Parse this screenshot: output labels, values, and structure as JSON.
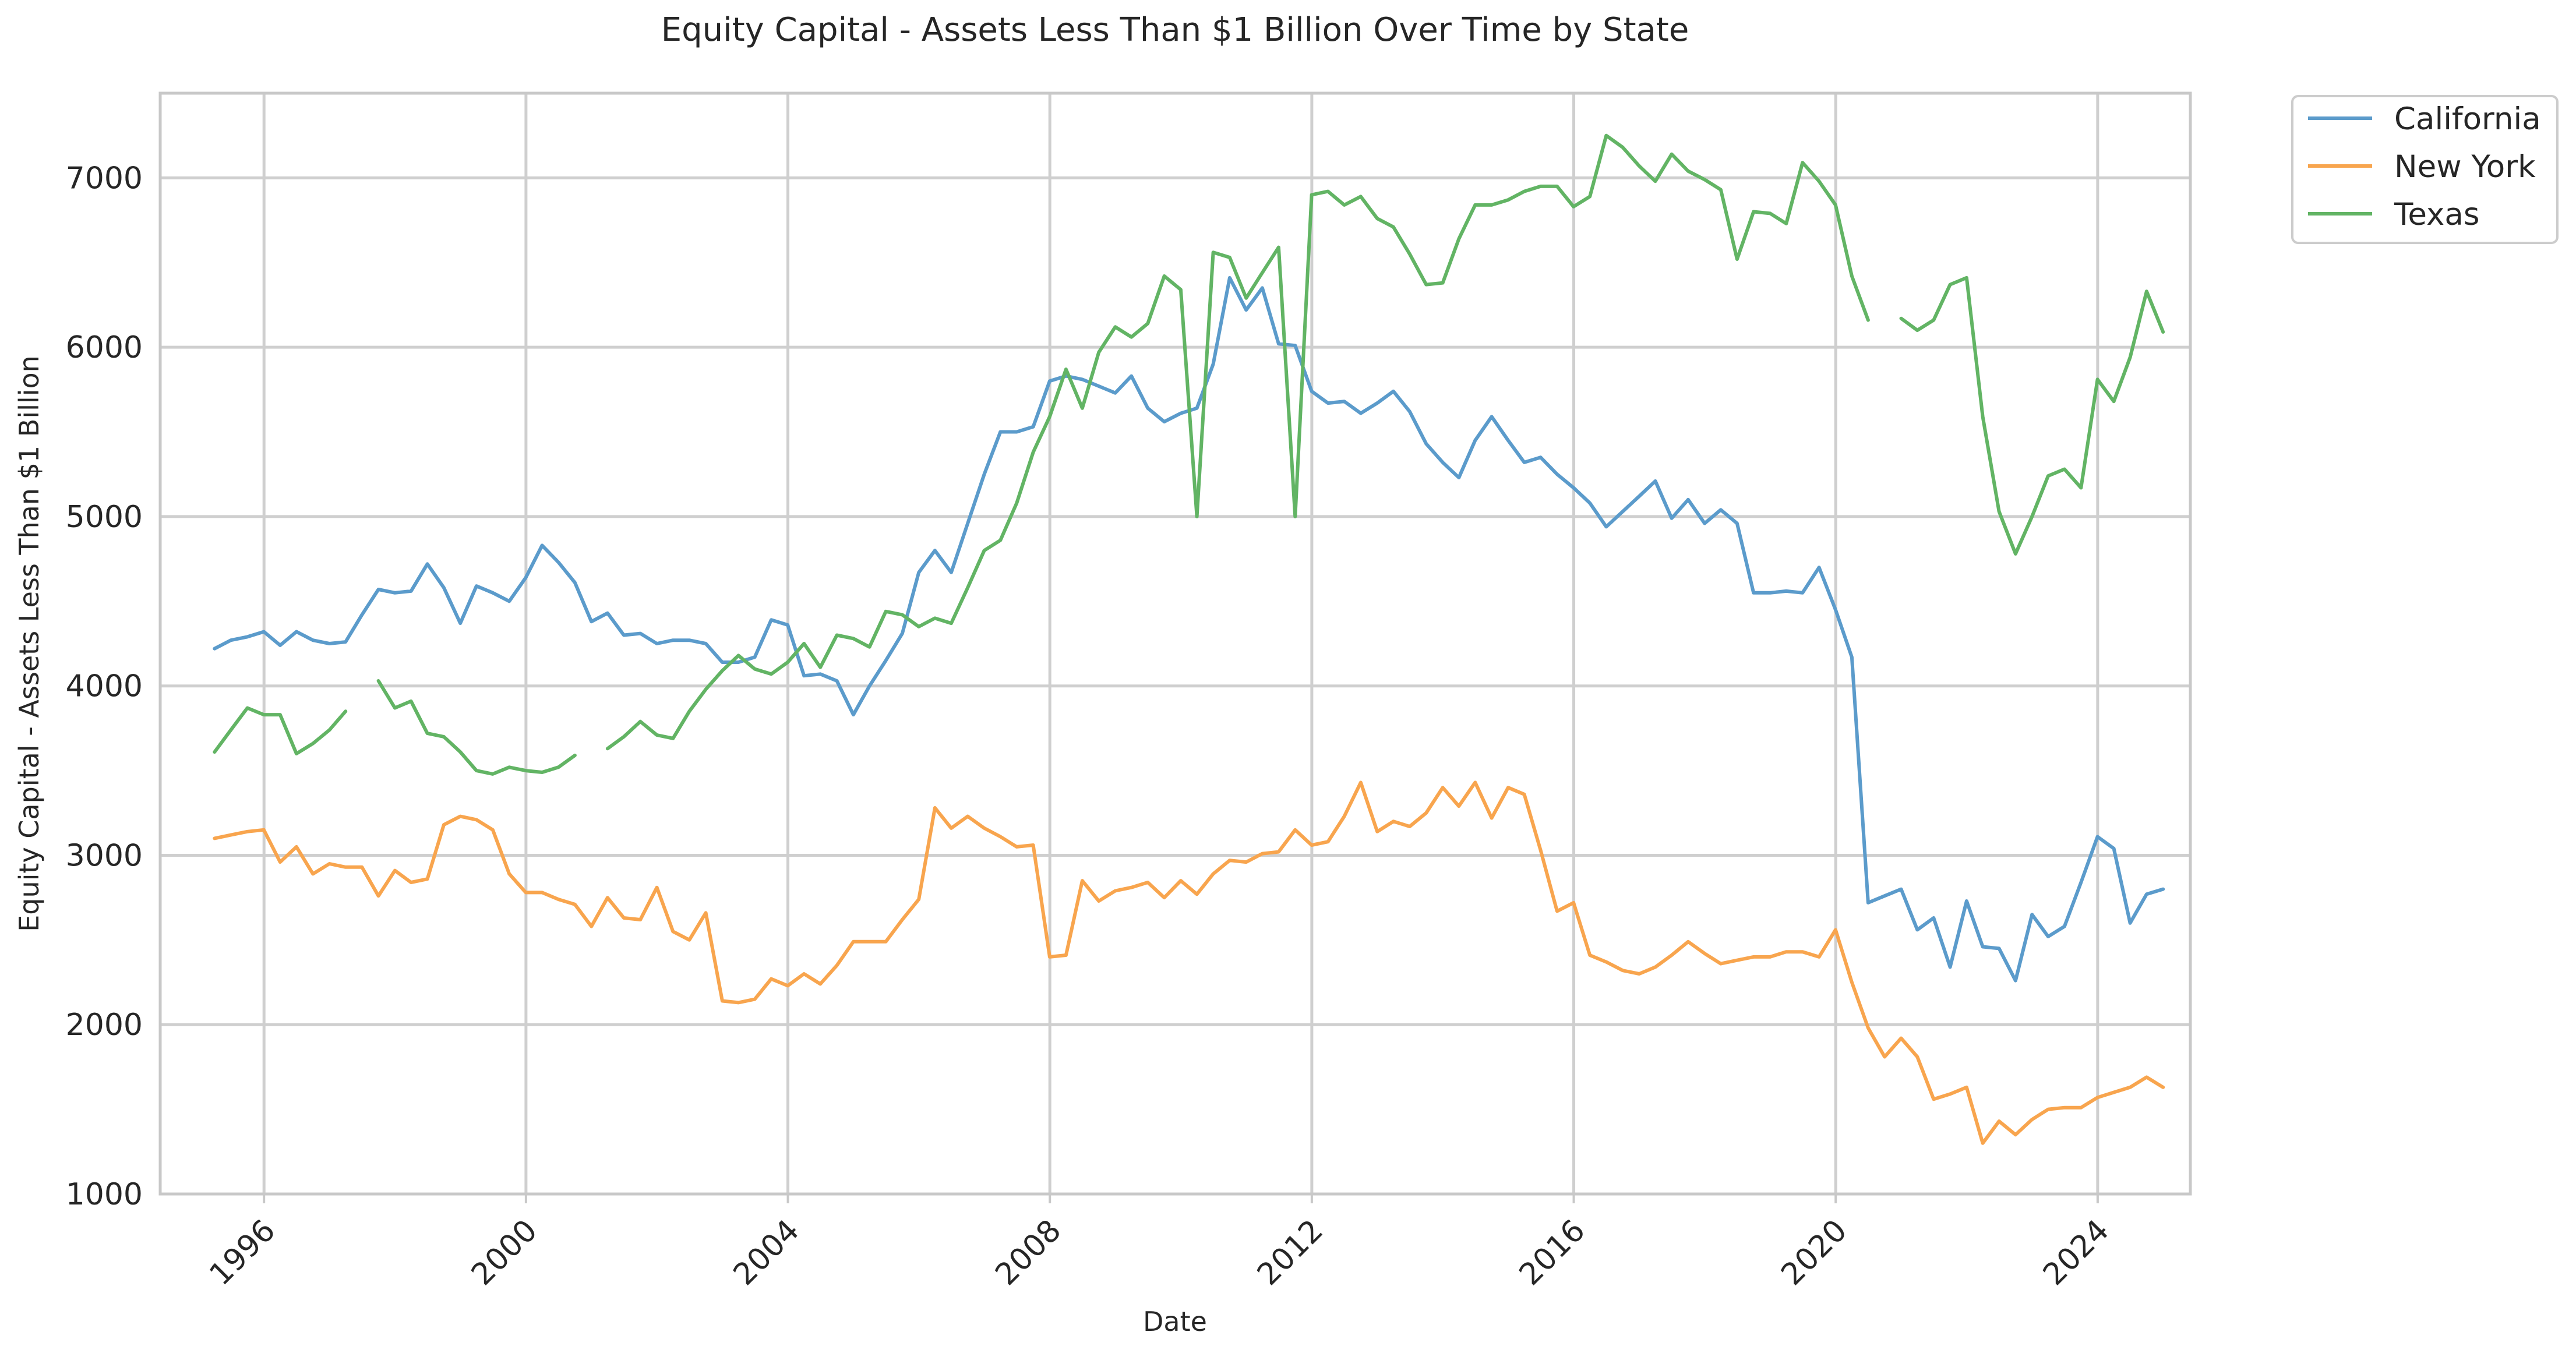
{
  "chart_data": {
    "type": "line",
    "title": "Equity Capital - Assets Less Than $1 Billion Over Time by State",
    "xlabel": "Date",
    "ylabel": "Equity Capital - Assets Less Than $1 Billion",
    "xlim": [
      "1994-06-01",
      "2025-06-01"
    ],
    "ylim": [
      1000,
      7500
    ],
    "x_ticks": [
      {
        "date": "1996-01-01",
        "label": "1996"
      },
      {
        "date": "2000-01-01",
        "label": "2000"
      },
      {
        "date": "2004-01-01",
        "label": "2004"
      },
      {
        "date": "2008-01-01",
        "label": "2008"
      },
      {
        "date": "2012-01-01",
        "label": "2012"
      },
      {
        "date": "2016-01-01",
        "label": "2016"
      },
      {
        "date": "2020-01-01",
        "label": "2020"
      },
      {
        "date": "2024-01-01",
        "label": "2024"
      }
    ],
    "y_ticks": [
      1000,
      2000,
      3000,
      4000,
      5000,
      6000,
      7000
    ],
    "grid": true,
    "legend_position": "outside-top-right",
    "x": [
      "1995-03-31",
      "1995-06-30",
      "1995-09-30",
      "1995-12-31",
      "1996-03-31",
      "1996-06-30",
      "1996-09-30",
      "1996-12-31",
      "1997-03-31",
      "1997-06-30",
      "1997-09-30",
      "1997-12-31",
      "1998-03-31",
      "1998-06-30",
      "1998-09-30",
      "1998-12-31",
      "1999-03-31",
      "1999-06-30",
      "1999-09-30",
      "1999-12-31",
      "2000-03-31",
      "2000-06-30",
      "2000-09-30",
      "2000-12-31",
      "2001-03-31",
      "2001-06-30",
      "2001-09-30",
      "2001-12-31",
      "2002-03-31",
      "2002-06-30",
      "2002-09-30",
      "2002-12-31",
      "2003-03-31",
      "2003-06-30",
      "2003-09-30",
      "2003-12-31",
      "2004-03-31",
      "2004-06-30",
      "2004-09-30",
      "2004-12-31",
      "2005-03-31",
      "2005-06-30",
      "2005-09-30",
      "2005-12-31",
      "2006-03-31",
      "2006-06-30",
      "2006-09-30",
      "2006-12-31",
      "2007-03-31",
      "2007-06-30",
      "2007-09-30",
      "2007-12-31",
      "2008-03-31",
      "2008-06-30",
      "2008-09-30",
      "2008-12-31",
      "2009-03-31",
      "2009-06-30",
      "2009-09-30",
      "2009-12-31",
      "2010-03-31",
      "2010-06-30",
      "2010-09-30",
      "2010-12-31",
      "2011-03-31",
      "2011-06-30",
      "2011-09-30",
      "2011-12-31",
      "2012-03-31",
      "2012-06-30",
      "2012-09-30",
      "2012-12-31",
      "2013-03-31",
      "2013-06-30",
      "2013-09-30",
      "2013-12-31",
      "2014-03-31",
      "2014-06-30",
      "2014-09-30",
      "2014-12-31",
      "2015-03-31",
      "2015-06-30",
      "2015-09-30",
      "2015-12-31",
      "2016-03-31",
      "2016-06-30",
      "2016-09-30",
      "2016-12-31",
      "2017-03-31",
      "2017-06-30",
      "2017-09-30",
      "2017-12-31",
      "2018-03-31",
      "2018-06-30",
      "2018-09-30",
      "2018-12-31",
      "2019-03-31",
      "2019-06-30",
      "2019-09-30",
      "2019-12-31",
      "2020-03-31",
      "2020-06-30",
      "2020-09-30",
      "2020-12-31",
      "2021-03-31",
      "2021-06-30",
      "2021-09-30",
      "2021-12-31",
      "2022-03-31",
      "2022-06-30",
      "2022-09-30",
      "2022-12-31",
      "2023-03-31",
      "2023-06-30",
      "2023-09-30",
      "2023-12-31",
      "2024-03-31",
      "2024-06-30",
      "2024-09-30",
      "2024-12-31"
    ],
    "series": [
      {
        "name": "California",
        "color": "#5b9bcb",
        "values": [
          4220,
          4270,
          4290,
          4320,
          4240,
          4320,
          4270,
          4250,
          4260,
          4420,
          4570,
          4550,
          4560,
          4720,
          4580,
          4370,
          4590,
          4550,
          4500,
          4640,
          4830,
          4730,
          4610,
          4380,
          4430,
          4300,
          4310,
          4250,
          4270,
          4270,
          4250,
          4140,
          4140,
          4170,
          4390,
          4360,
          4060,
          4070,
          4030,
          3830,
          4000,
          4150,
          4310,
          4670,
          4800,
          4670,
          4960,
          5250,
          5500,
          5500,
          5530,
          5800,
          5830,
          5810,
          5770,
          5730,
          5830,
          5640,
          5560,
          5610,
          5640,
          5900,
          6410,
          6220,
          6350,
          6020,
          6010,
          5740,
          5670,
          5680,
          5610,
          5670,
          5740,
          5620,
          5430,
          5320,
          5230,
          5450,
          5590,
          5450,
          5320,
          5350,
          5250,
          5170,
          5080,
          4940,
          5030,
          5120,
          5210,
          4990,
          5100,
          4960,
          5040,
          4960,
          4550,
          4550,
          4560,
          4550,
          4700,
          4450,
          4170,
          2720,
          2760,
          2800,
          2560,
          2630,
          2340,
          2730,
          2460,
          2450,
          2260,
          2650,
          2520,
          2580,
          2840,
          3110,
          3040,
          2600,
          2770,
          2800
        ]
      },
      {
        "name": "New York",
        "color": "#f8a54e",
        "values": [
          3100,
          3120,
          3140,
          3150,
          2960,
          3050,
          2890,
          2950,
          2930,
          2930,
          2760,
          2910,
          2840,
          2860,
          3180,
          3230,
          3210,
          3150,
          2890,
          2780,
          2780,
          2740,
          2710,
          2580,
          2750,
          2630,
          2620,
          2810,
          2550,
          2500,
          2660,
          2140,
          2130,
          2150,
          2270,
          2230,
          2300,
          2240,
          2350,
          2490,
          2490,
          2490,
          2620,
          2740,
          3280,
          3160,
          3230,
          3160,
          3110,
          3050,
          3060,
          2400,
          2410,
          2850,
          2730,
          2790,
          2810,
          2840,
          2750,
          2850,
          2770,
          2890,
          2970,
          2960,
          3010,
          3020,
          3150,
          3060,
          3080,
          3230,
          3430,
          3140,
          3200,
          3170,
          3250,
          3400,
          3290,
          3430,
          3220,
          3400,
          3360,
          3030,
          2670,
          2720,
          2410,
          2370,
          2320,
          2300,
          2340,
          2410,
          2490,
          2420,
          2360,
          2380,
          2400,
          2400,
          2430,
          2430,
          2400,
          2560,
          2250,
          1980,
          1810,
          1920,
          1810,
          1560,
          1590,
          1630,
          1300,
          1430,
          1350,
          1440,
          1500,
          1510,
          1510,
          1570,
          1600,
          1630,
          1690,
          1630
        ]
      },
      {
        "name": "Texas",
        "color": "#62b464",
        "values": [
          3610,
          3740,
          3870,
          3830,
          3830,
          3600,
          3660,
          3740,
          3850,
          null,
          4030,
          3870,
          3910,
          3720,
          3700,
          3610,
          3500,
          3480,
          3520,
          3500,
          3490,
          3520,
          3590,
          null,
          3630,
          3700,
          3790,
          3710,
          3690,
          3850,
          3980,
          4090,
          4180,
          4100,
          4070,
          4140,
          4250,
          4110,
          4300,
          4280,
          4230,
          4440,
          4420,
          4350,
          4400,
          4370,
          4580,
          4800,
          4860,
          5080,
          5380,
          5590,
          5870,
          5640,
          5970,
          6120,
          6060,
          6140,
          6420,
          6340,
          5000,
          6560,
          6530,
          6290,
          6440,
          6590,
          5000,
          6900,
          6920,
          6840,
          6890,
          6760,
          6710,
          6550,
          6370,
          6380,
          6640,
          6840,
          6840,
          6870,
          6920,
          6950,
          6950,
          6830,
          6890,
          7250,
          7180,
          7070,
          6980,
          7140,
          7040,
          6990,
          6930,
          6520,
          6800,
          6790,
          6730,
          7090,
          6980,
          6840,
          6420,
          6160,
          null,
          6170,
          6100,
          6160,
          6370,
          6410,
          5590,
          5030,
          4780,
          5000,
          5240,
          5280,
          5170,
          5810,
          5680,
          5940,
          6330,
          6090
        ]
      }
    ]
  }
}
